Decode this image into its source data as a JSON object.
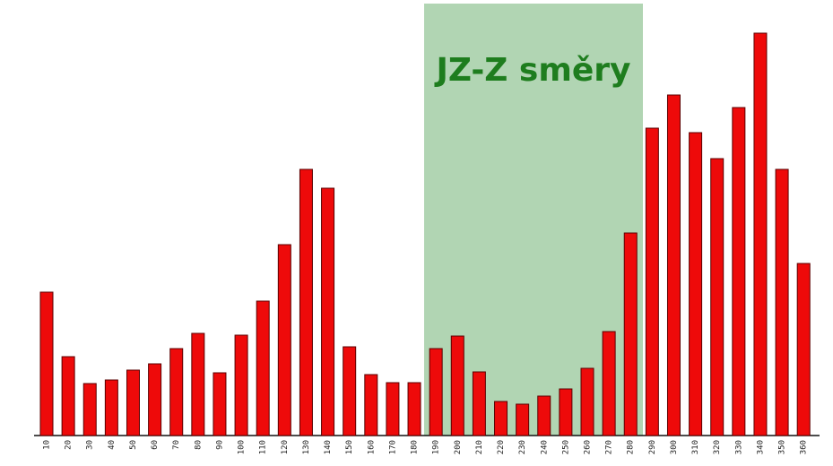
{
  "chart_data": {
    "type": "bar",
    "annotation": "JZ-Z směry",
    "categories": [
      "10",
      "20",
      "30",
      "40",
      "50",
      "60",
      "70",
      "80",
      "90",
      "100",
      "110",
      "120",
      "130",
      "140",
      "150",
      "160",
      "170",
      "180",
      "190",
      "200",
      "210",
      "220",
      "230",
      "240",
      "250",
      "260",
      "270",
      "280",
      "290",
      "300",
      "310",
      "320",
      "330",
      "340",
      "350",
      "360"
    ],
    "values": [
      160,
      88,
      58,
      62,
      73,
      80,
      97,
      114,
      70,
      112,
      150,
      213,
      297,
      276,
      99,
      68,
      59,
      59,
      97,
      111,
      71,
      38,
      35,
      44,
      52,
      75,
      116,
      226,
      343,
      380,
      338,
      309,
      366,
      449,
      297,
      192
    ],
    "color": "#ee0a0a",
    "ylim": [
      0,
      485
    ]
  }
}
